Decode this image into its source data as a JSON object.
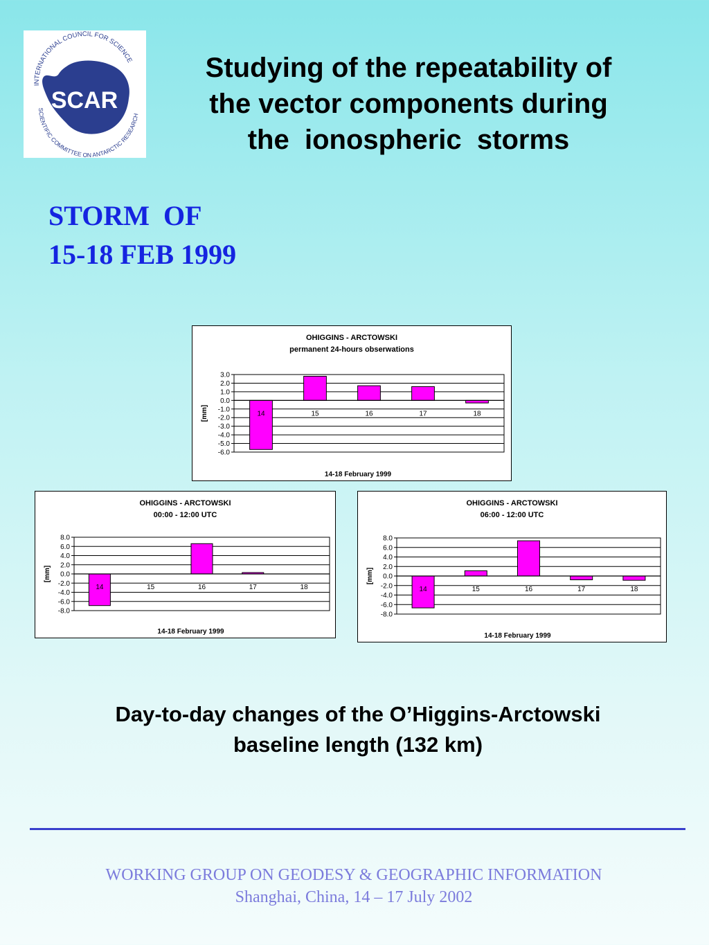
{
  "logo": {
    "name": "SCAR",
    "ring_top": "INTERNATIONAL COUNCIL FOR SCIENCE",
    "ring_bottom": "SCIENTIFIC COMMITTEE ON ANTARCTIC RESEARCH",
    "color": "#2b3e8f"
  },
  "title": {
    "line1": "Studying of the repeatability of",
    "line2": "the vector components during",
    "line3": "the  ionospheric  storms"
  },
  "storm": {
    "line1": "STORM  OF",
    "line2": "15-18 FEB 1999"
  },
  "chart_data": [
    {
      "type": "bar",
      "title": "OHIGGINS - ARCTOWSKI",
      "subtitle": "permanent 24-hours obserwations",
      "xlabel": "14-18 February 1999",
      "ylabel": "[mm]",
      "categories": [
        "14",
        "15",
        "16",
        "17",
        "18"
      ],
      "values": [
        -5.7,
        2.8,
        1.7,
        1.6,
        -0.3
      ],
      "ylim": [
        -6.0,
        3.0
      ],
      "yticks": [
        "3.0",
        "2.0",
        "1.0",
        "0.0",
        "-1.0",
        "-2.0",
        "-3.0",
        "-4.0",
        "-5.0",
        "-6.0"
      ],
      "bar_color": "#ff00ff",
      "grid": true
    },
    {
      "type": "bar",
      "title": "OHIGGINS - ARCTOWSKI",
      "subtitle": "00:00 - 12:00 UTC",
      "xlabel": "14-18 February 1999",
      "ylabel": "[mm]",
      "categories": [
        "14",
        "15",
        "16",
        "17",
        "18"
      ],
      "values": [
        -6.9,
        0.0,
        6.6,
        0.3,
        0.0
      ],
      "ylim": [
        -8.0,
        8.0
      ],
      "yticks": [
        "8.0",
        "6.0",
        "4.0",
        "2.0",
        "0.0",
        "-2.0",
        "-4.0",
        "-6.0",
        "-8.0"
      ],
      "bar_color": "#ff00ff",
      "grid": true
    },
    {
      "type": "bar",
      "title": "OHIGGINS - ARCTOWSKI",
      "subtitle": "06:00 - 12:00 UTC",
      "xlabel": "14-18 February 1999",
      "ylabel": "[mm]",
      "categories": [
        "14",
        "15",
        "16",
        "17",
        "18"
      ],
      "values": [
        -6.7,
        1.1,
        7.4,
        -0.8,
        -0.9
      ],
      "ylim": [
        -8.0,
        8.0
      ],
      "yticks": [
        "8.0",
        "6.0",
        "4.0",
        "2.0",
        "0.0",
        "-2.0",
        "-4.0",
        "-6.0",
        "-8.0"
      ],
      "bar_color": "#ff00ff",
      "grid": true
    }
  ],
  "caption": {
    "line1": "Day-to-day changes of the O’Higgins-Arctowski",
    "line2": "baseline length (132 km)"
  },
  "footer": {
    "line1": "WORKING GROUP ON GEODESY & GEOGRAPHIC INFORMATION",
    "line2": "Shanghai, China, 14 – 17 July 2002"
  }
}
